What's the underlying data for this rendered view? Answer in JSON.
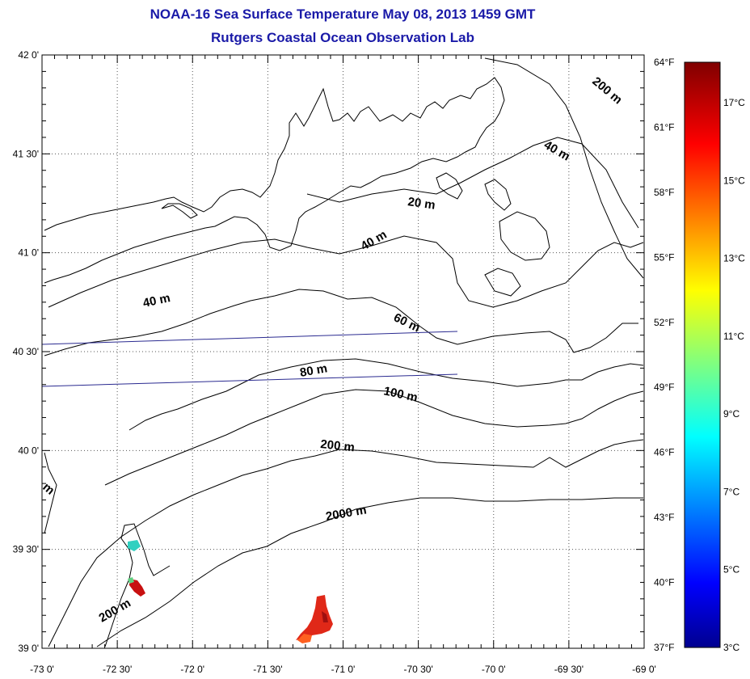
{
  "title": "NOAA-16 Sea Surface Temperature May 08, 2013 1459 GMT",
  "subtitle": "Rutgers Coastal Ocean Observation Lab",
  "lat_labels": [
    "42 0'",
    "41 30'",
    "41 0'",
    "40 30'",
    "40 0'",
    "39 30'",
    "39 0'"
  ],
  "lon_labels": [
    "-73 0'",
    "-72 30'",
    "-72 0'",
    "-71 30'",
    "-71 0'",
    "-70 30'",
    "-70 0'",
    "-69 30'",
    "-69 0'"
  ],
  "colorbar": {
    "fahrenheit_labels": [
      "64°F",
      "61°F",
      "58°F",
      "55°F",
      "52°F",
      "49°F",
      "46°F",
      "43°F",
      "40°F",
      "37°F"
    ],
    "celsius_labels": [
      "17°C",
      "15°C",
      "13°C",
      "11°C",
      "9°C",
      "7°C",
      "5°C",
      "3°C"
    ]
  },
  "contour_labels": [
    "200 m",
    "40 m",
    "20 m",
    "40 m",
    "40 m",
    "60 m",
    "80 m",
    "100 m",
    "200 m",
    "2000 m",
    "200 m",
    "m"
  ],
  "colors": {
    "title": "#1a1aa8",
    "track_line": "#2a2a90",
    "coast": "#000000"
  }
}
